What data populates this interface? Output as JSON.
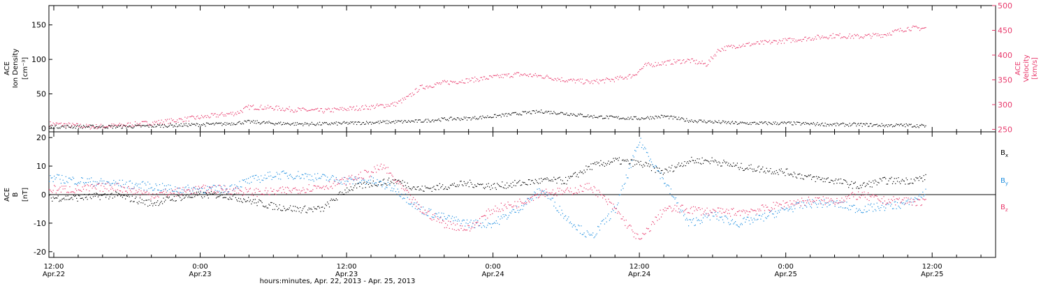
{
  "colors": {
    "black": "#000000",
    "pink": "#e8376a",
    "blue": "#1f8fe0",
    "frame": "#000000"
  },
  "x_axis": {
    "label": "hours:minutes, Apr. 22, 2013 - Apr. 25, 2013",
    "ticks": [
      {
        "hours": 12,
        "time": "12:00",
        "date": "Apr.22"
      },
      {
        "hours": 24,
        "time": "0:00",
        "date": "Apr.23"
      },
      {
        "hours": 36,
        "time": "12:00",
        "date": "Apr.23"
      },
      {
        "hours": 48,
        "time": "0:00",
        "date": "Apr.24"
      },
      {
        "hours": 60,
        "time": "12:00",
        "date": "Apr.24"
      },
      {
        "hours": 72,
        "time": "0:00",
        "date": "Apr.25"
      },
      {
        "hours": 84,
        "time": "12:00",
        "date": "Apr.25"
      }
    ]
  },
  "chart_data": [
    {
      "type": "scatter",
      "panel": "top",
      "ylabel_left": [
        "ACE",
        "Ion Density",
        "[cm⁻³]"
      ],
      "ylabel_right": [
        "ACE",
        "Velocity",
        "[km/s]"
      ],
      "ylim_left": [
        -5,
        178
      ],
      "ylim_right": [
        245,
        500
      ],
      "xlim_hours": [
        11.6,
        89.2
      ],
      "left_ticks": [
        "0",
        "50",
        "100",
        "150"
      ],
      "right_ticks": [
        "250",
        "300",
        "350",
        "400",
        "450",
        "500"
      ],
      "series": [
        {
          "color": "black",
          "axis": "left",
          "x_hours": [
            11.6,
            14,
            16,
            18,
            20,
            22,
            24,
            26,
            28,
            30,
            32,
            34,
            36,
            38,
            40,
            42,
            44,
            46,
            48,
            50,
            52,
            54,
            56,
            58,
            60,
            62,
            64,
            66,
            68,
            70,
            72,
            74,
            76,
            78,
            80,
            82,
            83.5
          ],
          "values": [
            3,
            3,
            3,
            3,
            4,
            5,
            6,
            7,
            10,
            8,
            7,
            7,
            8,
            9,
            10,
            11,
            14,
            15,
            18,
            22,
            25,
            22,
            18,
            16,
            15,
            18,
            12,
            10,
            8,
            8,
            8,
            7,
            6,
            6,
            5,
            5,
            4
          ]
        },
        {
          "color": "pink",
          "axis": "right",
          "x_hours": [
            11.6,
            13,
            15,
            17,
            19,
            21,
            23,
            25,
            27,
            28,
            30,
            32,
            34,
            36,
            38,
            40,
            41,
            42,
            44,
            46,
            48,
            50,
            52,
            54,
            56,
            58,
            59.5,
            60.5,
            62,
            64,
            65.5,
            66.5,
            68,
            70,
            72,
            74,
            76,
            78,
            80,
            82,
            83.5
          ],
          "values": [
            262,
            260,
            256,
            258,
            262,
            266,
            272,
            278,
            284,
            296,
            294,
            290,
            288,
            292,
            296,
            302,
            315,
            335,
            345,
            350,
            356,
            362,
            358,
            350,
            346,
            352,
            360,
            380,
            385,
            390,
            382,
            412,
            420,
            425,
            430,
            435,
            440,
            438,
            442,
            455,
            455
          ]
        }
      ]
    },
    {
      "type": "scatter",
      "panel": "bottom",
      "ylabel_left": [
        "ACE",
        "B",
        "[nT]"
      ],
      "ylim": [
        -22,
        22
      ],
      "xlim_hours": [
        11.6,
        89.2
      ],
      "left_ticks": [
        "-20",
        "-10",
        "0",
        "10",
        "20"
      ],
      "series": [
        {
          "name": "Bx",
          "color": "black",
          "x_hours": [
            11.6,
            14,
            17,
            20,
            22,
            24,
            26,
            28,
            30,
            32,
            34,
            36,
            38,
            40,
            42,
            44,
            46,
            48,
            50,
            52,
            54,
            56,
            58,
            60,
            62,
            64,
            66,
            68,
            70,
            72,
            74,
            76,
            78,
            80,
            82,
            83.5
          ],
          "values": [
            -1,
            -1,
            0,
            -3,
            -1,
            0,
            0,
            -2,
            -4,
            -5,
            -5,
            2,
            4,
            5,
            2,
            3,
            4,
            3,
            4,
            5,
            5,
            10,
            12,
            11,
            8,
            12,
            12,
            10,
            9,
            8,
            6,
            5,
            3,
            5,
            5,
            6
          ]
        },
        {
          "name": "By",
          "color": "blue",
          "x_hours": [
            11.6,
            14,
            17,
            20,
            22,
            24,
            26,
            28,
            30,
            32,
            34,
            36,
            38,
            40,
            42,
            44,
            46,
            48,
            50,
            52,
            54,
            56,
            58,
            60,
            62,
            64,
            66,
            68,
            70,
            72,
            74,
            76,
            78,
            80,
            82,
            83.5
          ],
          "values": [
            6,
            5,
            4,
            3,
            2,
            2,
            2,
            5,
            7,
            7,
            6,
            5,
            5,
            2,
            -5,
            -8,
            -10,
            -10,
            -5,
            2,
            -8,
            -15,
            -5,
            19,
            5,
            -10,
            -7,
            -10,
            -8,
            -5,
            -3,
            -3,
            -5,
            -4,
            -3,
            1
          ]
        },
        {
          "name": "Bz",
          "color": "pink",
          "x_hours": [
            11.6,
            14,
            17,
            20,
            22,
            24,
            26,
            28,
            30,
            32,
            34,
            36,
            38,
            39,
            40,
            42,
            44,
            46,
            48,
            50,
            52,
            54,
            56,
            58,
            60,
            62,
            64,
            66,
            68,
            70,
            72,
            74,
            76,
            78,
            80,
            82,
            83.5
          ],
          "values": [
            2,
            2,
            3,
            0,
            1,
            2,
            2,
            1,
            1,
            2,
            3,
            5,
            8,
            10,
            5,
            -5,
            -10,
            -12,
            -5,
            -3,
            1,
            1,
            3,
            -5,
            -16,
            -5,
            -5,
            -6,
            -6,
            -5,
            -3,
            -2,
            -2,
            0,
            -2,
            -2,
            -3
          ]
        }
      ]
    }
  ],
  "legend": [
    {
      "main": "B",
      "sub": "x",
      "color": "black"
    },
    {
      "main": "B",
      "sub": "y",
      "color": "blue"
    },
    {
      "main": "B",
      "sub": "z",
      "color": "pink"
    }
  ]
}
